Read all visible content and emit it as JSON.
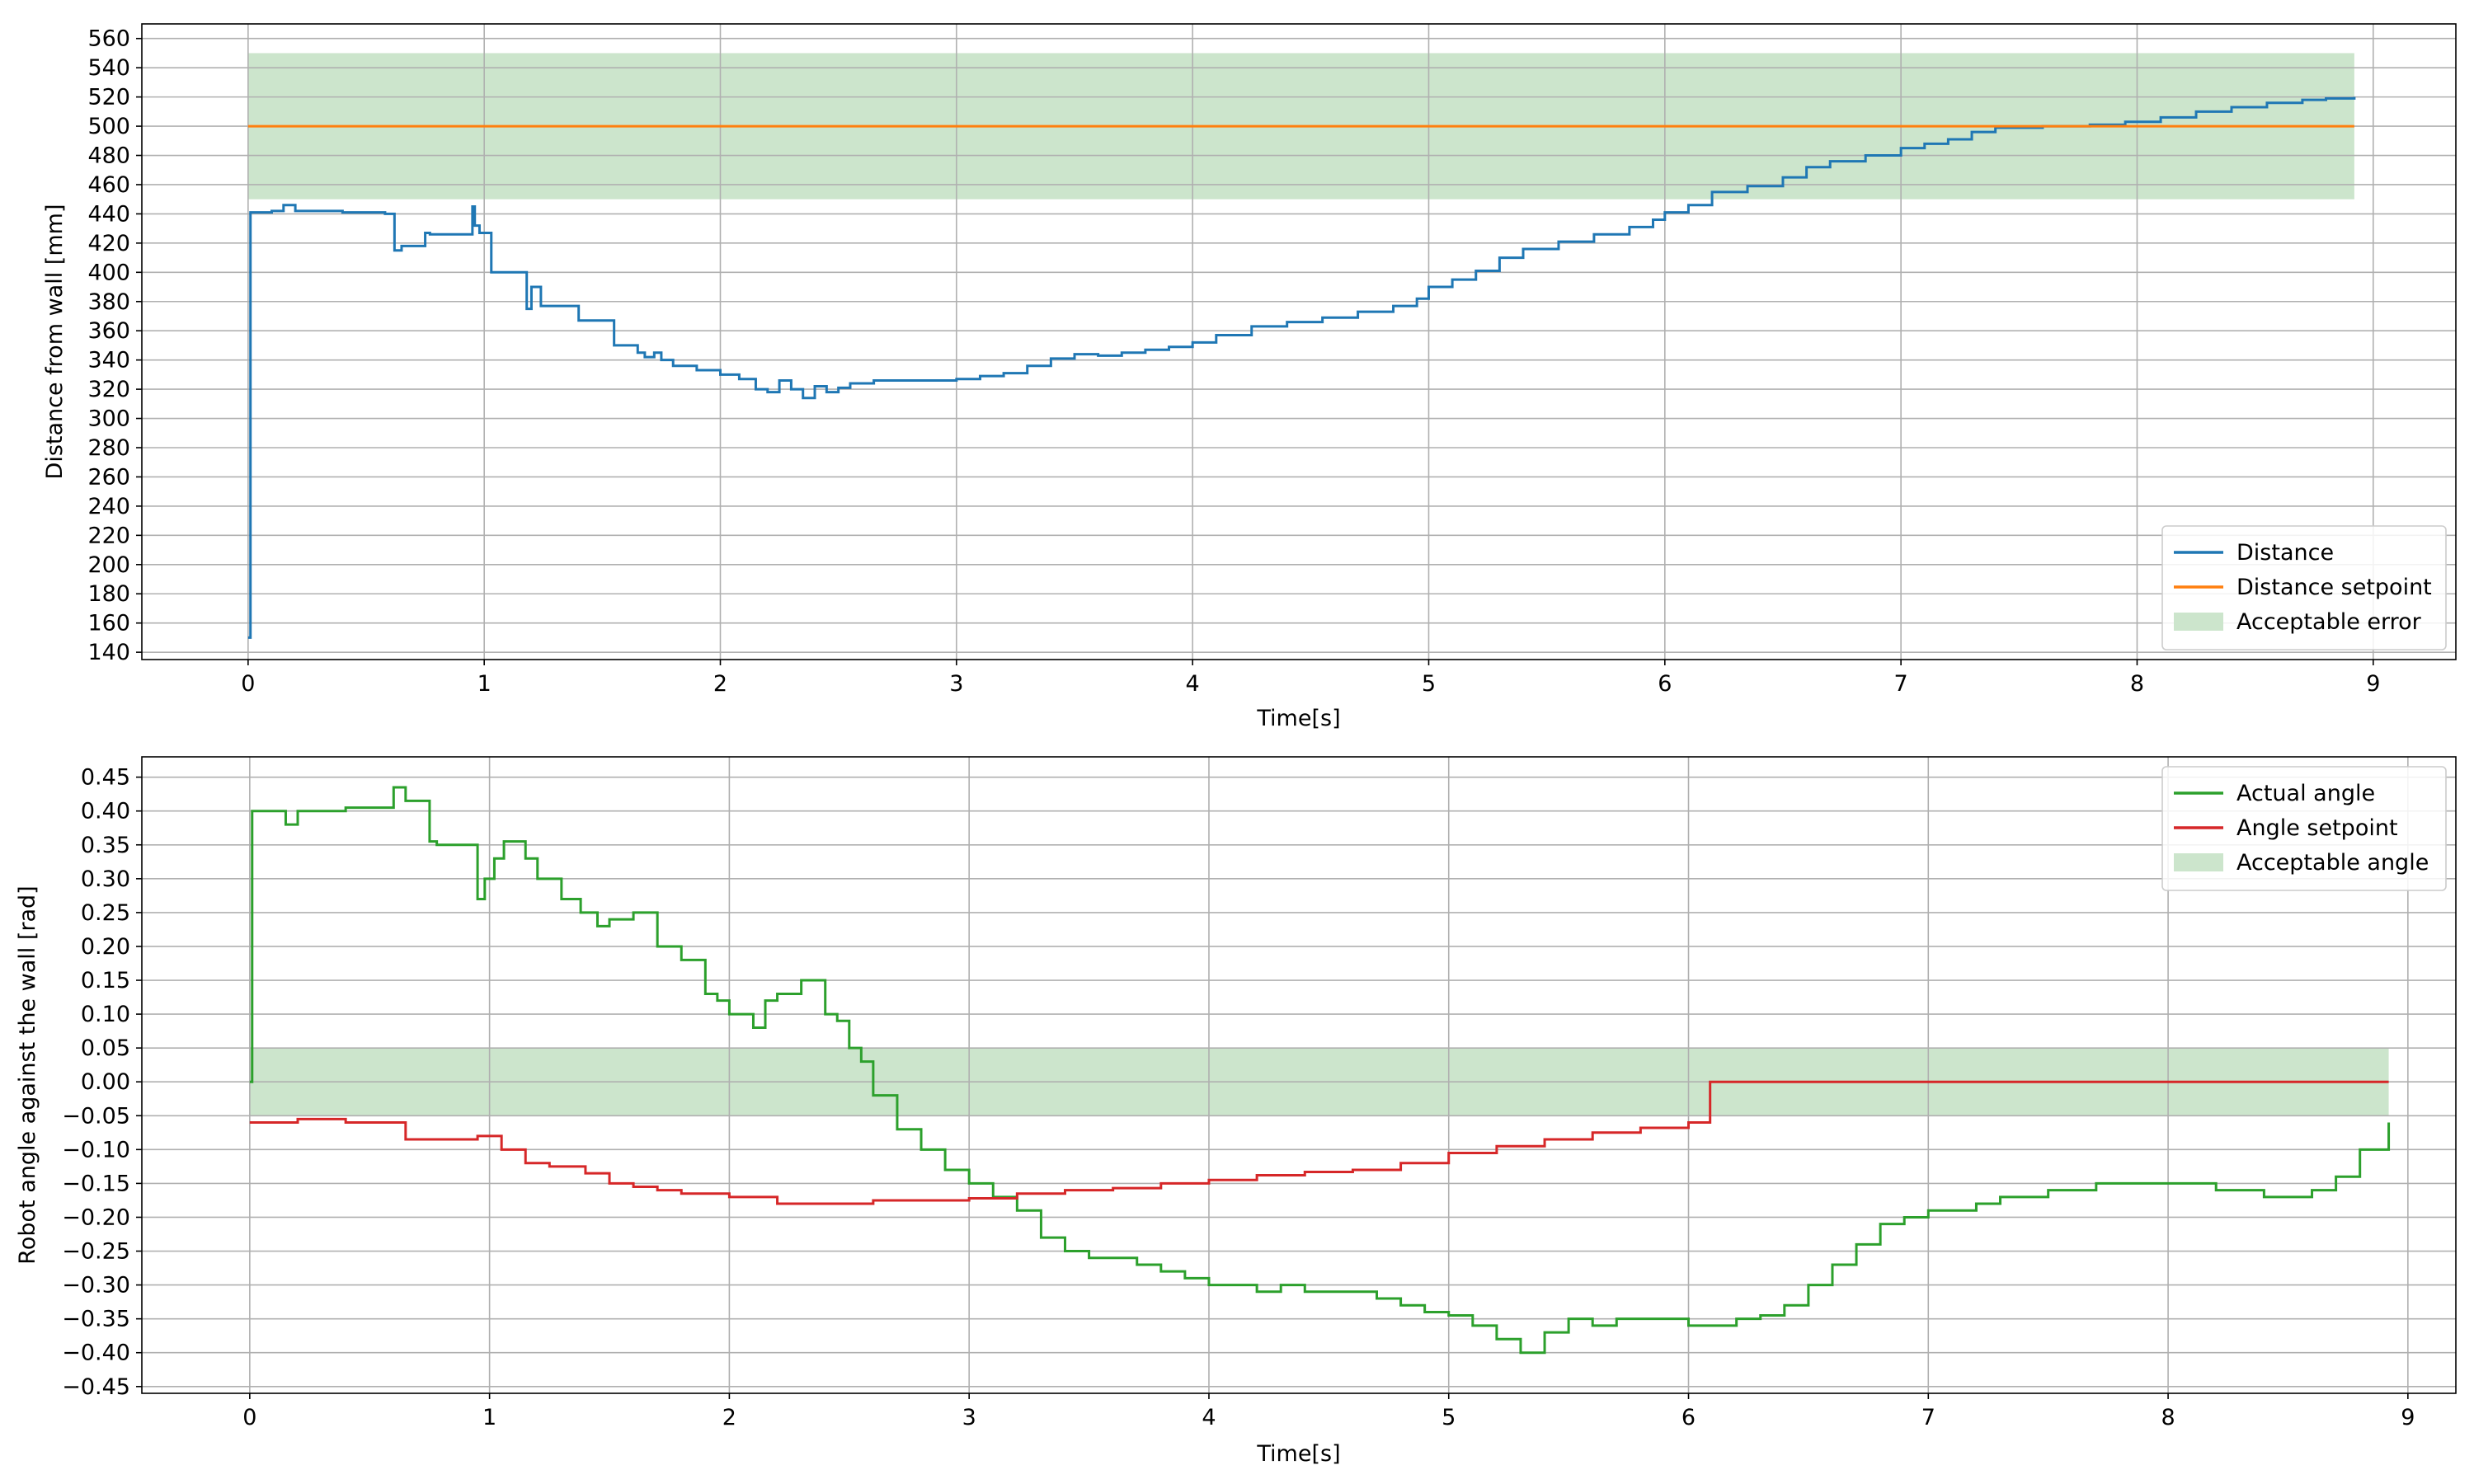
{
  "chart_data": [
    {
      "type": "line",
      "xlabel": "Time[s]",
      "ylabel": "Distance from wall [mm]",
      "xlim": [
        -0.45,
        9.35
      ],
      "ylim": [
        135,
        570
      ],
      "xticks": [
        0,
        1,
        2,
        3,
        4,
        5,
        6,
        7,
        8,
        9
      ],
      "yticks": [
        140,
        160,
        180,
        200,
        220,
        240,
        260,
        280,
        300,
        320,
        340,
        360,
        380,
        400,
        420,
        440,
        460,
        480,
        500,
        520,
        540,
        560
      ],
      "grid": true,
      "legend_position": "bottom-right",
      "band": {
        "name": "Acceptable error",
        "x": [
          0,
          8.92
        ],
        "y": [
          450,
          550
        ],
        "color": "#cce5cc"
      },
      "series": [
        {
          "name": "Distance",
          "color": "#1f77b4",
          "step": true,
          "x": [
            0,
            0.01,
            0.1,
            0.15,
            0.2,
            0.4,
            0.45,
            0.58,
            0.62,
            0.65,
            0.72,
            0.75,
            0.77,
            0.95,
            0.96,
            0.98,
            1.03,
            1.07,
            1.18,
            1.2,
            1.24,
            1.4,
            1.45,
            1.55,
            1.65,
            1.68,
            1.72,
            1.75,
            1.8,
            1.9,
            2.0,
            2.08,
            2.15,
            2.2,
            2.25,
            2.3,
            2.35,
            2.4,
            2.45,
            2.5,
            2.55,
            2.65,
            2.7,
            2.9,
            3.0,
            3.1,
            3.2,
            3.3,
            3.4,
            3.5,
            3.6,
            3.7,
            3.8,
            3.9,
            4.0,
            4.1,
            4.25,
            4.4,
            4.55,
            4.7,
            4.85,
            4.95,
            5.0,
            5.1,
            5.2,
            5.3,
            5.4,
            5.55,
            5.7,
            5.85,
            5.95,
            6.0,
            6.1,
            6.2,
            6.35,
            6.5,
            6.6,
            6.7,
            6.85,
            7.0,
            7.1,
            7.2,
            7.3,
            7.4,
            7.5,
            7.6,
            7.7,
            7.8,
            7.95,
            8.1,
            8.25,
            8.4,
            8.55,
            8.7,
            8.8,
            8.92
          ],
          "y": [
            150,
            441,
            442,
            446,
            442,
            441,
            441,
            440,
            415,
            418,
            418,
            427,
            426,
            445,
            432,
            427,
            400,
            400,
            375,
            390,
            377,
            367,
            367,
            350,
            345,
            342,
            345,
            340,
            336,
            333,
            330,
            327,
            320,
            318,
            326,
            320,
            314,
            322,
            318,
            321,
            324,
            326,
            326,
            326,
            327,
            329,
            331,
            336,
            341,
            344,
            343,
            345,
            347,
            349,
            352,
            357,
            363,
            366,
            369,
            373,
            377,
            382,
            390,
            395,
            401,
            410,
            416,
            421,
            426,
            431,
            436,
            441,
            446,
            455,
            459,
            465,
            472,
            476,
            480,
            485,
            488,
            491,
            496,
            499,
            499,
            500,
            500,
            501,
            503,
            506,
            510,
            513,
            516,
            518,
            519,
            520
          ]
        },
        {
          "name": "Distance setpoint",
          "color": "#ff7f0e",
          "step": false,
          "x": [
            0,
            8.92
          ],
          "y": [
            500,
            500
          ]
        }
      ]
    },
    {
      "type": "line",
      "xlabel": "Time[s]",
      "ylabel": "Robot angle against the wall [rad]",
      "xlim": [
        -0.45,
        9.2
      ],
      "ylim": [
        -0.46,
        0.48
      ],
      "xticks": [
        0,
        1,
        2,
        3,
        4,
        5,
        6,
        7,
        8,
        9
      ],
      "yticks": [
        -0.45,
        -0.4,
        -0.35,
        -0.3,
        -0.25,
        -0.2,
        -0.15,
        -0.1,
        -0.05,
        0.0,
        0.05,
        0.1,
        0.15,
        0.2,
        0.25,
        0.3,
        0.35,
        0.4,
        0.45
      ],
      "ytick_labels": [
        "−0.45",
        "−0.40",
        "−0.35",
        "−0.30",
        "−0.25",
        "−0.20",
        "−0.15",
        "−0.10",
        "−0.05",
        "0.00",
        "0.05",
        "0.10",
        "0.15",
        "0.20",
        "0.25",
        "0.30",
        "0.35",
        "0.40",
        "0.45"
      ],
      "grid": true,
      "legend_position": "top-right",
      "band": {
        "name": "Acceptable angle",
        "x": [
          0,
          8.92
        ],
        "y": [
          -0.05,
          0.05
        ],
        "color": "#cce5cc"
      },
      "series": [
        {
          "name": "Actual angle",
          "color": "#2ca02c",
          "step": true,
          "x": [
            0,
            0.01,
            0.15,
            0.2,
            0.3,
            0.4,
            0.5,
            0.6,
            0.65,
            0.75,
            0.78,
            0.95,
            0.98,
            1.02,
            1.06,
            1.15,
            1.2,
            1.3,
            1.38,
            1.45,
            1.5,
            1.6,
            1.7,
            1.8,
            1.9,
            1.95,
            2.0,
            2.1,
            2.15,
            2.2,
            2.3,
            2.4,
            2.45,
            2.5,
            2.55,
            2.6,
            2.7,
            2.8,
            2.9,
            3.0,
            3.1,
            3.2,
            3.3,
            3.4,
            3.5,
            3.6,
            3.7,
            3.8,
            3.9,
            4.0,
            4.1,
            4.2,
            4.3,
            4.4,
            4.5,
            4.6,
            4.7,
            4.8,
            4.9,
            5.0,
            5.1,
            5.2,
            5.3,
            5.4,
            5.5,
            5.6,
            5.7,
            5.8,
            5.9,
            6.0,
            6.1,
            6.2,
            6.3,
            6.4,
            6.5,
            6.6,
            6.7,
            6.8,
            6.9,
            7.0,
            7.1,
            7.2,
            7.3,
            7.4,
            7.5,
            7.6,
            7.7,
            7.8,
            7.9,
            8.0,
            8.1,
            8.2,
            8.3,
            8.4,
            8.5,
            8.6,
            8.7,
            8.8,
            8.92
          ],
          "y": [
            0.0,
            0.4,
            0.38,
            0.4,
            0.4,
            0.405,
            0.405,
            0.435,
            0.415,
            0.355,
            0.35,
            0.27,
            0.3,
            0.33,
            0.355,
            0.33,
            0.3,
            0.27,
            0.25,
            0.23,
            0.24,
            0.25,
            0.2,
            0.18,
            0.13,
            0.12,
            0.1,
            0.08,
            0.12,
            0.13,
            0.15,
            0.1,
            0.09,
            0.05,
            0.03,
            -0.02,
            -0.07,
            -0.1,
            -0.13,
            -0.15,
            -0.17,
            -0.19,
            -0.23,
            -0.25,
            -0.26,
            -0.26,
            -0.27,
            -0.28,
            -0.29,
            -0.3,
            -0.3,
            -0.31,
            -0.3,
            -0.31,
            -0.31,
            -0.31,
            -0.32,
            -0.33,
            -0.34,
            -0.345,
            -0.36,
            -0.38,
            -0.4,
            -0.37,
            -0.35,
            -0.36,
            -0.35,
            -0.35,
            -0.35,
            -0.36,
            -0.36,
            -0.35,
            -0.345,
            -0.33,
            -0.3,
            -0.27,
            -0.24,
            -0.21,
            -0.2,
            -0.19,
            -0.19,
            -0.18,
            -0.17,
            -0.17,
            -0.16,
            -0.16,
            -0.15,
            -0.15,
            -0.15,
            -0.15,
            -0.15,
            -0.16,
            -0.16,
            -0.17,
            -0.17,
            -0.16,
            -0.14,
            -0.1,
            -0.06
          ]
        },
        {
          "name": "Angle setpoint",
          "color": "#d62728",
          "step": true,
          "x": [
            0,
            0.2,
            0.4,
            0.6,
            0.65,
            0.8,
            0.95,
            1.05,
            1.15,
            1.25,
            1.4,
            1.5,
            1.6,
            1.7,
            1.8,
            2.0,
            2.2,
            2.4,
            2.6,
            2.8,
            3.0,
            3.2,
            3.4,
            3.6,
            3.8,
            4.0,
            4.2,
            4.4,
            4.6,
            4.8,
            5.0,
            5.2,
            5.4,
            5.6,
            5.8,
            6.0,
            6.09,
            8.92
          ],
          "y": [
            -0.06,
            -0.055,
            -0.06,
            -0.06,
            -0.085,
            -0.085,
            -0.08,
            -0.1,
            -0.12,
            -0.125,
            -0.135,
            -0.15,
            -0.155,
            -0.16,
            -0.165,
            -0.17,
            -0.18,
            -0.18,
            -0.175,
            -0.175,
            -0.172,
            -0.165,
            -0.16,
            -0.157,
            -0.15,
            -0.145,
            -0.138,
            -0.133,
            -0.13,
            -0.12,
            -0.105,
            -0.095,
            -0.085,
            -0.075,
            -0.068,
            -0.06,
            0.0,
            0.0
          ]
        }
      ]
    }
  ]
}
